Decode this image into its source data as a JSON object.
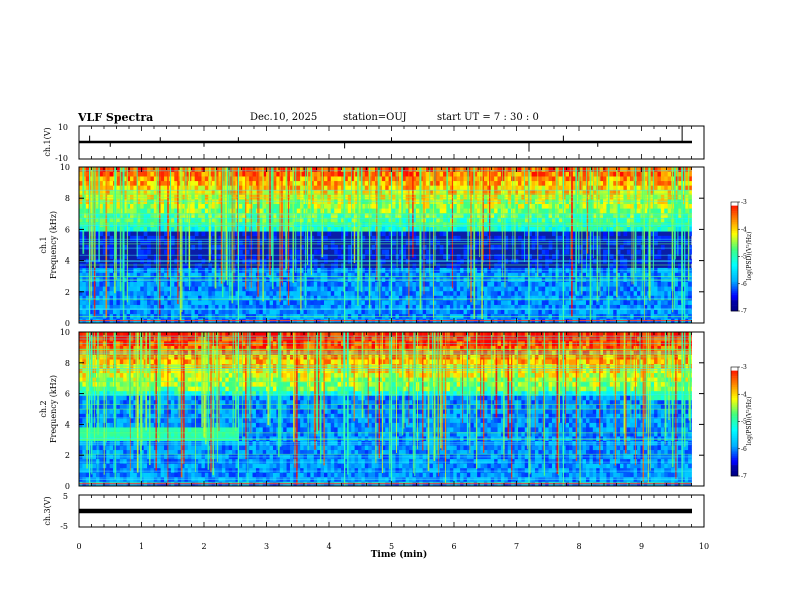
{
  "header": {
    "title": "VLF Spectra",
    "date": "Dec.10, 2025",
    "station": "station=OUJ",
    "start": "start  UT =   7 : 30 : 0"
  },
  "chart_data": [
    {
      "type": "line",
      "name": "ch1-waveform",
      "ylabel": "ch.1(V)",
      "ylim": [
        -10,
        10
      ],
      "yticks": [
        "10",
        "-10"
      ],
      "baseline": 0,
      "spikes": [
        {
          "t": 0.17,
          "v": 4
        },
        {
          "t": 0.5,
          "v": -3
        },
        {
          "t": 1.3,
          "v": 3
        },
        {
          "t": 2.0,
          "v": -3
        },
        {
          "t": 2.55,
          "v": 3
        },
        {
          "t": 4.25,
          "v": -4
        },
        {
          "t": 5.0,
          "v": 3
        },
        {
          "t": 7.2,
          "v": -6
        },
        {
          "t": 7.75,
          "v": 4
        },
        {
          "t": 8.3,
          "v": -3
        },
        {
          "t": 9.3,
          "v": 3
        },
        {
          "t": 9.65,
          "v": 10
        }
      ]
    },
    {
      "type": "heatmap",
      "name": "ch1-spectrogram",
      "ylabel_top": "ch.1",
      "ylabel": "Frequency (kHz)",
      "ylim": [
        0,
        10
      ],
      "yticks": [
        "0",
        "2",
        "4",
        "6",
        "8",
        "10"
      ],
      "quiet_band_khz": [
        3.5,
        5.8
      ],
      "colorbar": {
        "label": "log(PSD)(V²/Hz)",
        "ticks": [
          "-3",
          "-4",
          "-5",
          "-6",
          "-7"
        ],
        "range": [
          -7,
          -3
        ]
      }
    },
    {
      "type": "heatmap",
      "name": "ch2-spectrogram",
      "ylabel_top": "ch.2",
      "ylabel": "Frequency (kHz)",
      "ylim": [
        0,
        10
      ],
      "yticks": [
        "0",
        "2",
        "4",
        "6",
        "8",
        "10"
      ],
      "emission_band": {
        "start_min": 0,
        "end_min": 2.55,
        "freq_khz": 3.4
      },
      "late_band": {
        "start_min": 9.05,
        "end_min": 9.8,
        "freq_khz": 5.9
      },
      "colorbar": {
        "label": "log(PSD)(V²/Hz)",
        "ticks": [
          "-3",
          "-4",
          "-5",
          "-6",
          "-7"
        ],
        "range": [
          -7,
          -3
        ]
      }
    },
    {
      "type": "line",
      "name": "ch3-waveform",
      "ylabel": "ch.3(V)",
      "ylim": [
        -5,
        5
      ],
      "yticks": [
        "5",
        "-5"
      ],
      "baseline": 0
    }
  ],
  "time_axis": {
    "xlabel": "Time (min)",
    "xlim": [
      0,
      10
    ],
    "data_end_min": 9.8,
    "ticks": [
      "0",
      "1",
      "2",
      "3",
      "4",
      "5",
      "6",
      "7",
      "8",
      "9",
      "10"
    ]
  },
  "colors": {
    "jet": [
      "#000080",
      "#0000ff",
      "#00b0ff",
      "#00ffff",
      "#40ff80",
      "#ffff00",
      "#ff8000",
      "#ff0000",
      "#ffffff"
    ]
  }
}
